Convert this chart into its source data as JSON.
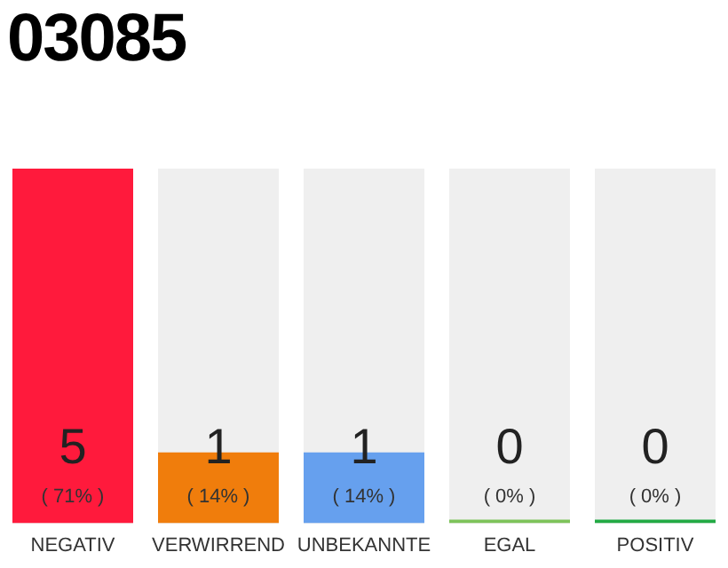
{
  "chart_data": {
    "type": "bar",
    "title": "03085",
    "categories": [
      "NEGATIV",
      "VERWIRREND",
      "UNBEKANNTE",
      "EGAL",
      "POSITIV"
    ],
    "values": [
      5,
      1,
      1,
      0,
      0
    ],
    "colors": [
      "#ff1a3c",
      "#f07d0c",
      "#66a0ee",
      "#7dc35a",
      "#22aa44"
    ],
    "value_labels": [
      "5",
      "1",
      "1",
      "0",
      "0"
    ],
    "annotations": [
      "( 71% )",
      "( 14% )",
      "( 14% )",
      "( 0% )",
      "( 0% )"
    ],
    "grid": false,
    "legend": false
  }
}
